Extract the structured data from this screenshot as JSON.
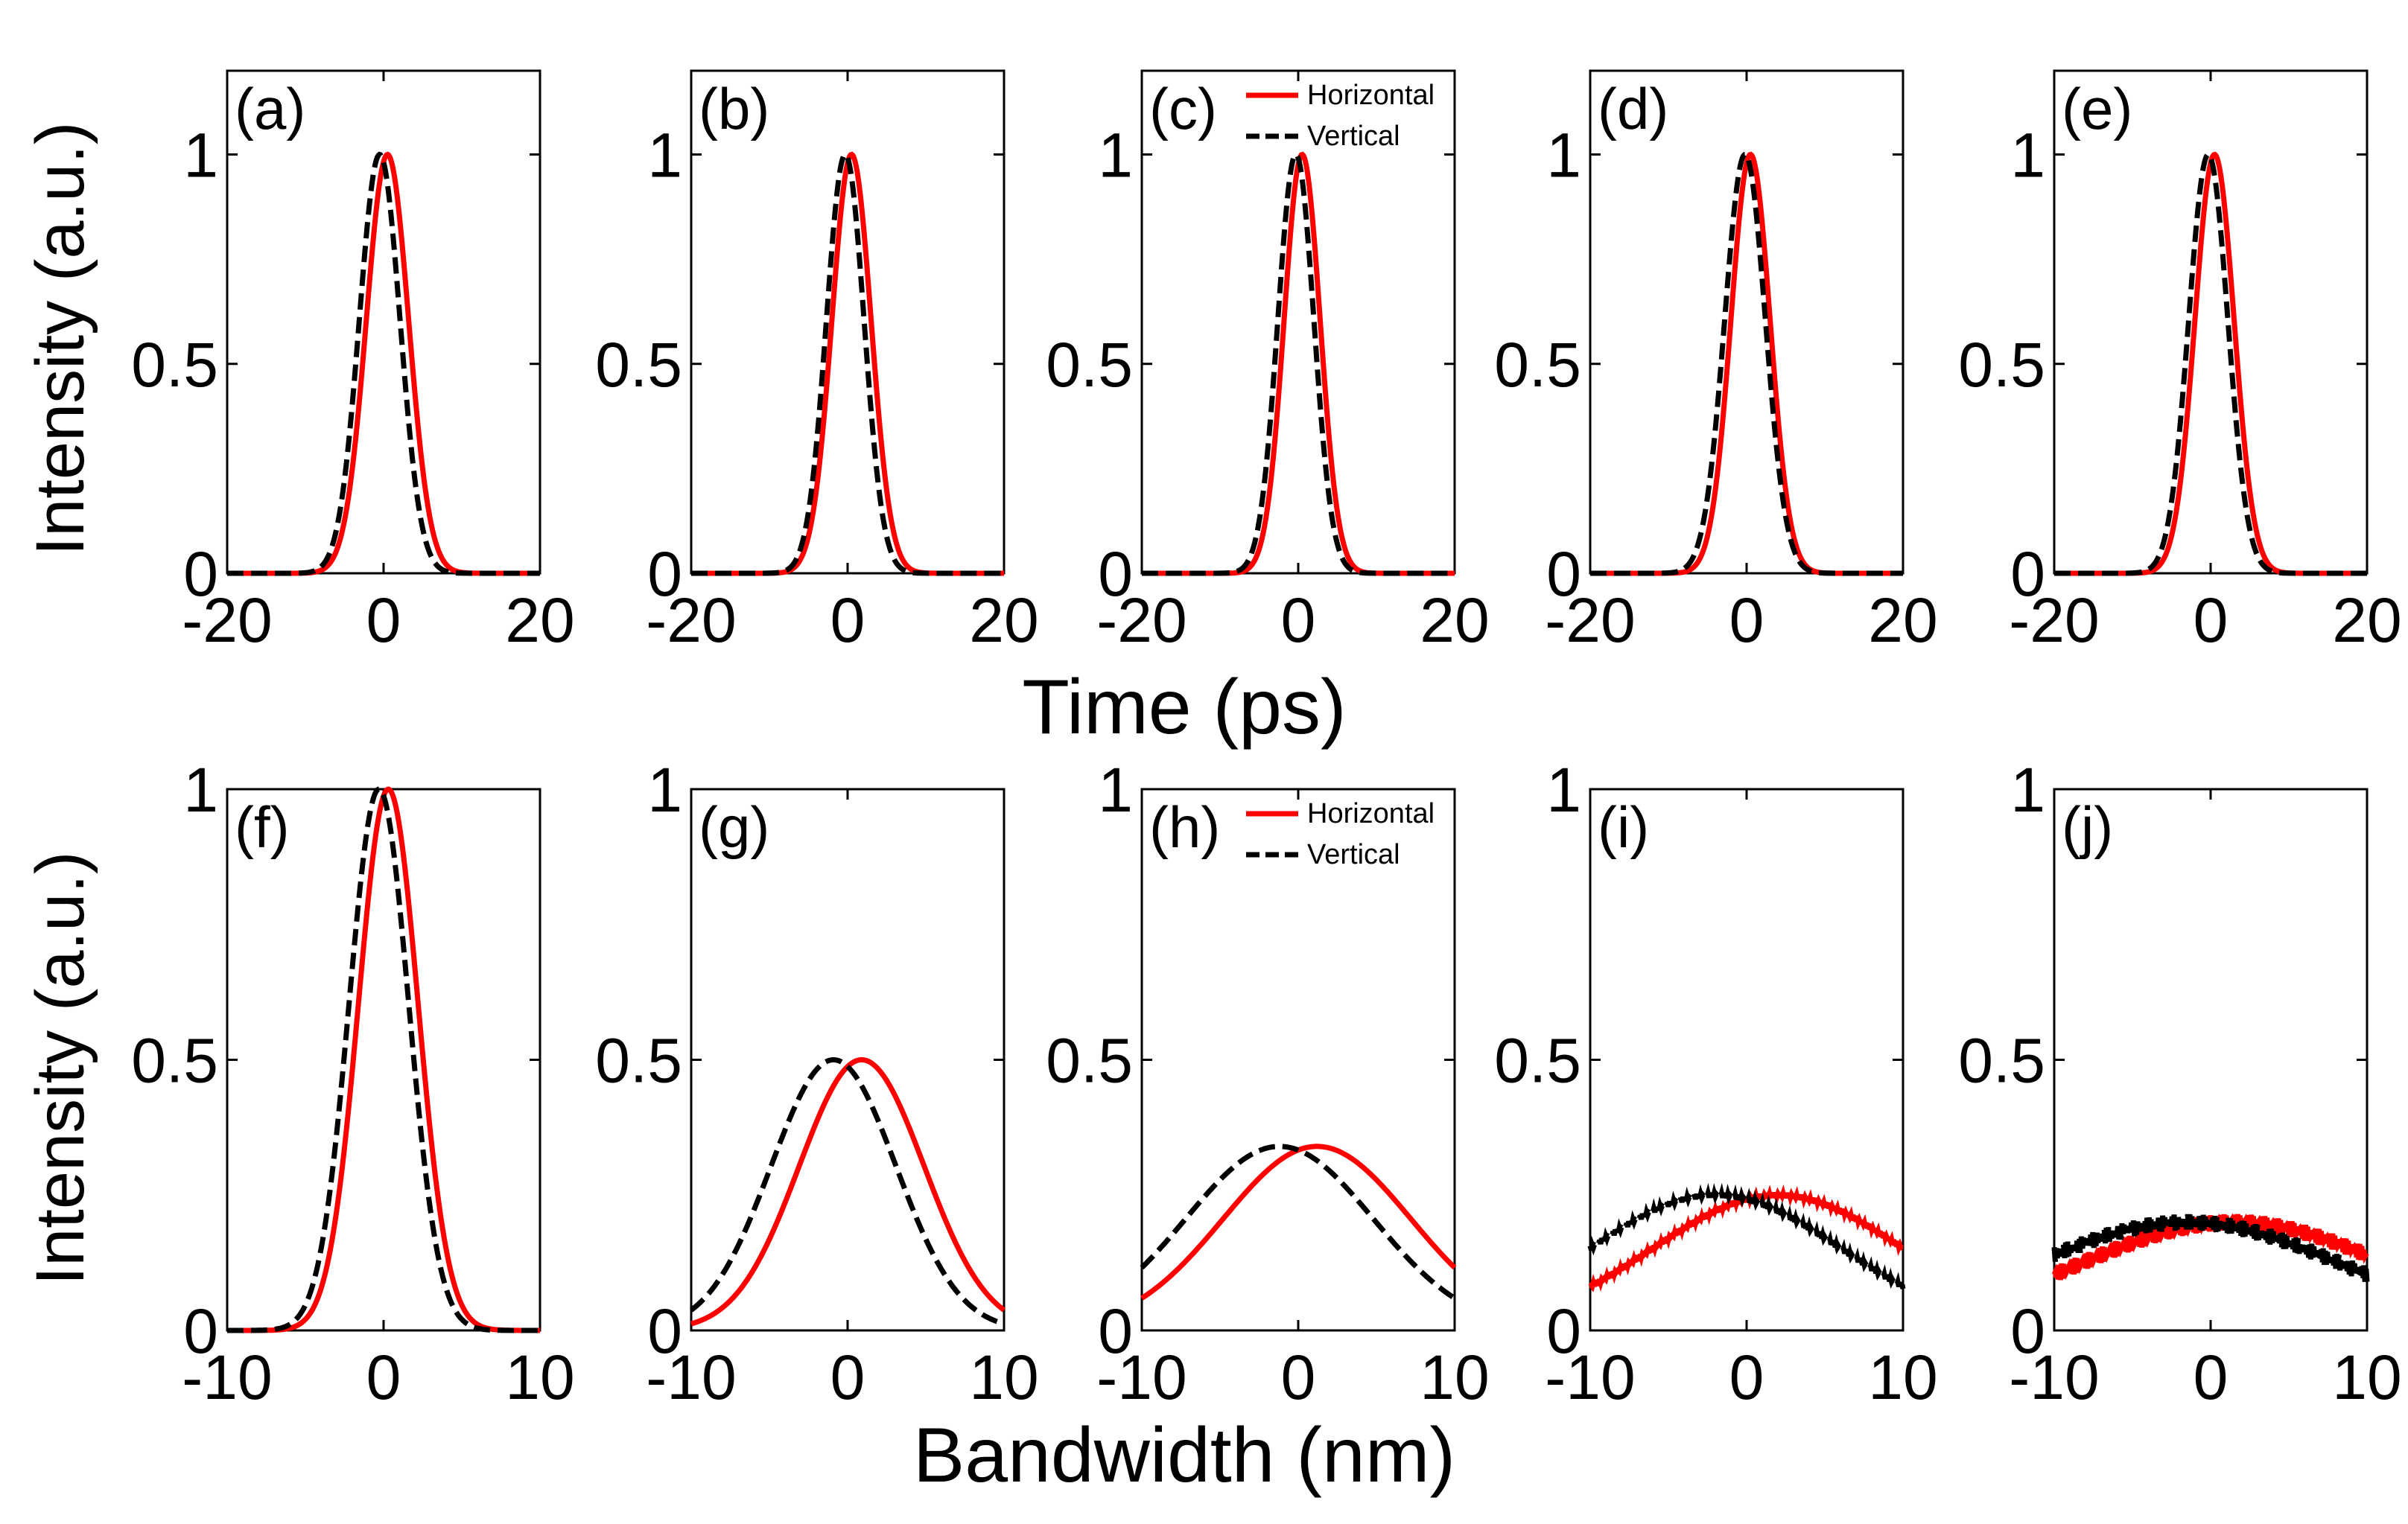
{
  "figure": {
    "top_xlabel": "Time (ps)",
    "bottom_xlabel": "Bandwidth (nm)",
    "ylabel_top": "Intensity (a.u.)",
    "ylabel_bottom": "Intensity (a.u.)"
  },
  "legend": {
    "horizontal": "Horizontal",
    "vertical": "Vertical"
  },
  "colors": {
    "horizontal": "#ff0000",
    "vertical": "#000000"
  },
  "chart_data": [
    {
      "type": "line",
      "panel": "(a)",
      "row": "time",
      "xlim": [
        -20,
        20
      ],
      "ylim": [
        0,
        1.2
      ],
      "xticks": [
        "-20",
        "0",
        "20"
      ],
      "yticks": [
        "0",
        "0.5",
        "1"
      ],
      "legend": false,
      "series": [
        {
          "name": "Horizontal",
          "shape": "gaussian",
          "center": 0.5,
          "sigma": 2.7,
          "amp": 1,
          "base": 0
        },
        {
          "name": "Vertical",
          "shape": "gaussian",
          "center": -0.5,
          "sigma": 2.6,
          "amp": 1,
          "base": 0
        }
      ]
    },
    {
      "type": "line",
      "panel": "(b)",
      "row": "time",
      "xlim": [
        -20,
        20
      ],
      "ylim": [
        0,
        1.2
      ],
      "xticks": [
        "-20",
        "0",
        "20"
      ],
      "yticks": [
        "0",
        "0.5",
        "1"
      ],
      "legend": false,
      "series": [
        {
          "name": "Horizontal",
          "shape": "gaussian",
          "center": 0.5,
          "sigma": 2.5,
          "amp": 1,
          "base": 0
        },
        {
          "name": "Vertical",
          "shape": "gaussian",
          "center": -0.3,
          "sigma": 2.4,
          "amp": 1,
          "base": 0
        }
      ]
    },
    {
      "type": "line",
      "panel": "(c)",
      "row": "time",
      "xlim": [
        -20,
        20
      ],
      "ylim": [
        0,
        1.2
      ],
      "xticks": [
        "-20",
        "0",
        "20"
      ],
      "yticks": [
        "0",
        "0.5",
        "1"
      ],
      "legend": true,
      "series": [
        {
          "name": "Horizontal",
          "shape": "gaussian",
          "center": 0.5,
          "sigma": 2.3,
          "amp": 1,
          "base": 0
        },
        {
          "name": "Vertical",
          "shape": "gaussian",
          "center": -0.3,
          "sigma": 2.3,
          "amp": 1,
          "base": 0
        }
      ]
    },
    {
      "type": "line",
      "panel": "(d)",
      "row": "time",
      "xlim": [
        -20,
        20
      ],
      "ylim": [
        0,
        1.2
      ],
      "xticks": [
        "-20",
        "0",
        "20"
      ],
      "yticks": [
        "0",
        "0.5",
        "1"
      ],
      "legend": false,
      "series": [
        {
          "name": "Horizontal",
          "shape": "gaussian",
          "center": 0.5,
          "sigma": 2.5,
          "amp": 1,
          "base": 0
        },
        {
          "name": "Vertical",
          "shape": "gaussian",
          "center": -0.2,
          "sigma": 2.6,
          "amp": 1,
          "base": 0
        }
      ]
    },
    {
      "type": "line",
      "panel": "(e)",
      "row": "time",
      "xlim": [
        -20,
        20
      ],
      "ylim": [
        0,
        1.2
      ],
      "xticks": [
        "-20",
        "0",
        "20"
      ],
      "yticks": [
        "0",
        "0.5",
        "1"
      ],
      "legend": false,
      "series": [
        {
          "name": "Horizontal",
          "shape": "gaussian",
          "center": 0.5,
          "sigma": 2.5,
          "amp": 1,
          "base": 0
        },
        {
          "name": "Vertical",
          "shape": "gaussian",
          "center": -0.3,
          "sigma": 2.5,
          "amp": 1,
          "base": 0
        }
      ]
    },
    {
      "type": "line",
      "panel": "(f)",
      "row": "bandwidth",
      "xlim": [
        -10,
        10
      ],
      "ylim": [
        0,
        1
      ],
      "xticks": [
        "-10",
        "0",
        "10"
      ],
      "yticks": [
        "0",
        "0.5",
        "1"
      ],
      "legend": false,
      "series": [
        {
          "name": "Horizontal",
          "shape": "gaussian",
          "center": 0.3,
          "sigma": 1.9,
          "amp": 1,
          "base": 0
        },
        {
          "name": "Vertical",
          "shape": "gaussian",
          "center": -0.3,
          "sigma": 1.9,
          "amp": 1,
          "base": 0
        }
      ]
    },
    {
      "type": "line",
      "panel": "(g)",
      "row": "bandwidth",
      "xlim": [
        -10,
        10
      ],
      "ylim": [
        0,
        1
      ],
      "xticks": [
        "-10",
        "0",
        "10"
      ],
      "yticks": [
        "0",
        "0.5",
        "1"
      ],
      "legend": false,
      "series": [
        {
          "name": "Horizontal",
          "shape": "gaussian",
          "center": 0.9,
          "sigma": 4.0,
          "amp": 0.5,
          "base": 0
        },
        {
          "name": "Vertical",
          "shape": "gaussian",
          "center": -0.9,
          "sigma": 4.0,
          "amp": 0.5,
          "base": 0
        }
      ]
    },
    {
      "type": "line",
      "panel": "(h)",
      "row": "bandwidth",
      "xlim": [
        -10,
        10
      ],
      "ylim": [
        0,
        1
      ],
      "xticks": [
        "-10",
        "0",
        "10"
      ],
      "yticks": [
        "0",
        "0.5",
        "1"
      ],
      "legend": true,
      "series": [
        {
          "name": "Horizontal",
          "shape": "gaussian",
          "center": 1.2,
          "sigma": 6.0,
          "amp": 0.34,
          "base": 0
        },
        {
          "name": "Vertical",
          "shape": "gaussian",
          "center": -1.2,
          "sigma": 6.0,
          "amp": 0.34,
          "base": 0
        }
      ]
    },
    {
      "type": "line",
      "panel": "(i)",
      "row": "bandwidth",
      "xlim": [
        -10,
        10
      ],
      "ylim": [
        0,
        1
      ],
      "xticks": [
        "-10",
        "0",
        "10"
      ],
      "yticks": [
        "0",
        "0.5",
        "1"
      ],
      "legend": false,
      "series": [
        {
          "name": "Horizontal",
          "shape": "gaussian",
          "center": 2.0,
          "sigma": 8.0,
          "amp": 0.25,
          "base": 0,
          "ripple": 0.005
        },
        {
          "name": "Vertical",
          "shape": "gaussian",
          "center": -2.0,
          "sigma": 8.0,
          "amp": 0.25,
          "base": 0,
          "ripple": 0.005
        }
      ]
    },
    {
      "type": "line",
      "panel": "(j)",
      "row": "bandwidth",
      "xlim": [
        -10,
        10
      ],
      "ylim": [
        0,
        1
      ],
      "xticks": [
        "-10",
        "0",
        "10"
      ],
      "yticks": [
        "0",
        "0.5",
        "1"
      ],
      "legend": false,
      "series": [
        {
          "name": "Horizontal",
          "shape": "gaussian",
          "center": 1.5,
          "sigma": 10.0,
          "amp": 0.2,
          "base": 0,
          "ripple": 0.015
        },
        {
          "name": "Vertical",
          "shape": "gaussian",
          "center": -1.5,
          "sigma": 10.0,
          "amp": 0.2,
          "base": 0,
          "ripple": 0.015
        }
      ]
    }
  ]
}
